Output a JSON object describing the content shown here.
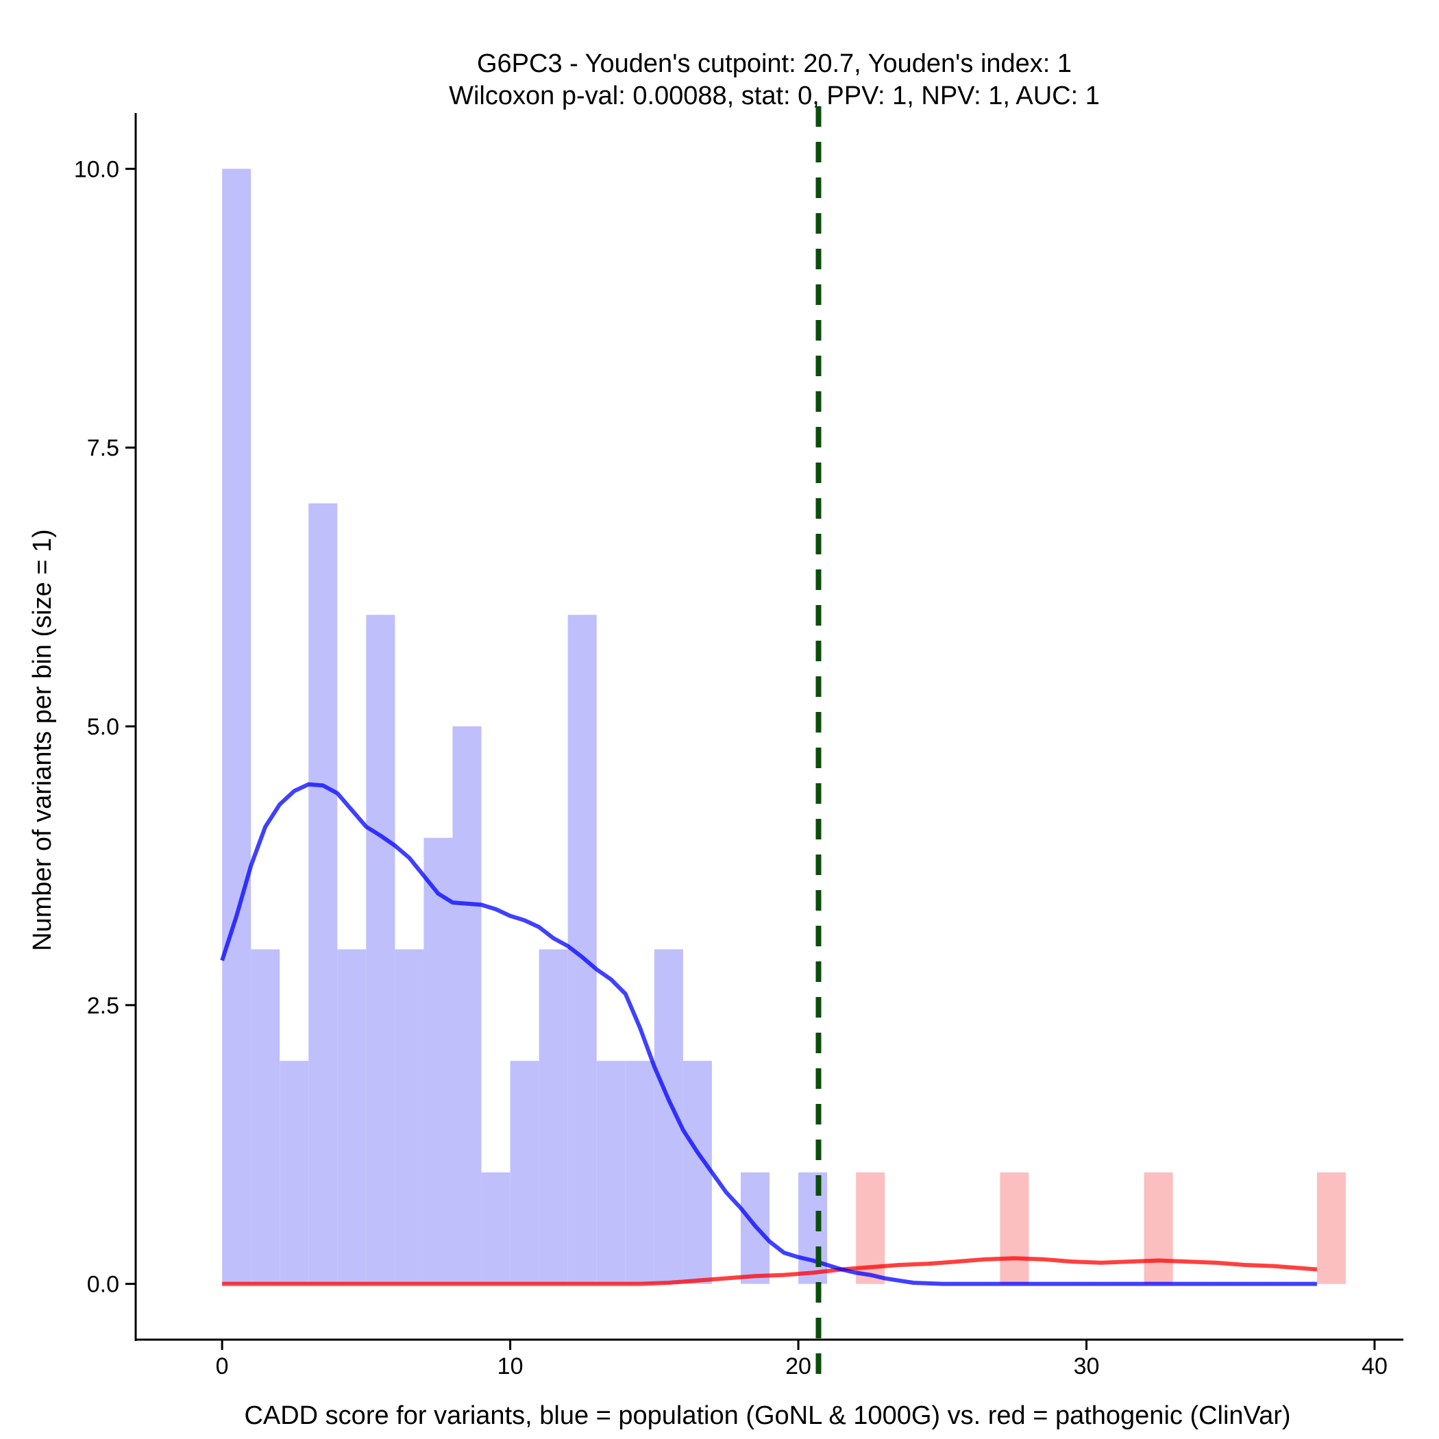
{
  "chart_data": {
    "type": "bar",
    "title_line1": "G6PC3 - Youden's cutpoint: 20.7, Youden's index: 1",
    "title_line2": "Wilcoxon p-val: 0.00088, stat: 0, PPV: 1, NPV: 1, AUC: 1",
    "xlabel": "CADD score for variants, blue = population (GoNL & 1000G) vs. red = pathogenic (ClinVar)",
    "ylabel": "Number of variants per bin (size = 1)",
    "xlim": [
      -3,
      41
    ],
    "ylim": [
      -0.5,
      10.5
    ],
    "x_ticks": [
      0,
      10,
      20,
      30,
      40
    ],
    "x_tick_labels": [
      "0",
      "10",
      "20",
      "30",
      "40"
    ],
    "y_ticks": [
      0,
      2.5,
      5,
      7.5,
      10
    ],
    "y_tick_labels": [
      "0.0",
      "2.5",
      "5.0",
      "7.5",
      "10.0"
    ],
    "bin_size": 1,
    "cutpoint": 20.7,
    "series": [
      {
        "name": "population (GoNL & 1000G)",
        "color": "#0000ff",
        "bar_color": "#bfbffc",
        "bins": [
          {
            "x0": 0,
            "value": 10
          },
          {
            "x0": 1,
            "value": 3
          },
          {
            "x0": 2,
            "value": 2
          },
          {
            "x0": 3,
            "value": 7
          },
          {
            "x0": 4,
            "value": 3
          },
          {
            "x0": 5,
            "value": 6
          },
          {
            "x0": 6,
            "value": 3
          },
          {
            "x0": 7,
            "value": 4
          },
          {
            "x0": 8,
            "value": 5
          },
          {
            "x0": 9,
            "value": 1
          },
          {
            "x0": 10,
            "value": 2
          },
          {
            "x0": 11,
            "value": 3
          },
          {
            "x0": 12,
            "value": 6
          },
          {
            "x0": 13,
            "value": 2
          },
          {
            "x0": 14,
            "value": 2
          },
          {
            "x0": 15,
            "value": 3
          },
          {
            "x0": 16,
            "value": 2
          },
          {
            "x0": 18,
            "value": 1
          },
          {
            "x0": 20,
            "value": 1
          }
        ],
        "density_curve": [
          [
            0,
            2.9
          ],
          [
            0.5,
            3.3
          ],
          [
            1,
            3.75
          ],
          [
            1.5,
            4.1
          ],
          [
            2,
            4.3
          ],
          [
            2.5,
            4.42
          ],
          [
            3,
            4.48
          ],
          [
            3.5,
            4.47
          ],
          [
            4,
            4.4
          ],
          [
            4.5,
            4.25
          ],
          [
            5,
            4.1
          ],
          [
            5.5,
            4.02
          ],
          [
            6,
            3.93
          ],
          [
            6.5,
            3.82
          ],
          [
            7,
            3.66
          ],
          [
            7.5,
            3.5
          ],
          [
            8,
            3.42
          ],
          [
            8.5,
            3.41
          ],
          [
            9,
            3.4
          ],
          [
            9.5,
            3.36
          ],
          [
            10,
            3.3
          ],
          [
            10.5,
            3.26
          ],
          [
            11,
            3.2
          ],
          [
            11.5,
            3.1
          ],
          [
            12,
            3.03
          ],
          [
            12.5,
            2.93
          ],
          [
            13,
            2.82
          ],
          [
            13.5,
            2.73
          ],
          [
            14,
            2.6
          ],
          [
            14.5,
            2.3
          ],
          [
            15,
            1.95
          ],
          [
            15.5,
            1.65
          ],
          [
            16,
            1.38
          ],
          [
            16.5,
            1.18
          ],
          [
            17,
            1.0
          ],
          [
            17.5,
            0.82
          ],
          [
            18,
            0.68
          ],
          [
            18.5,
            0.52
          ],
          [
            19,
            0.38
          ],
          [
            19.5,
            0.28
          ],
          [
            20,
            0.24
          ],
          [
            20.5,
            0.21
          ],
          [
            21,
            0.17
          ],
          [
            21.5,
            0.13
          ],
          [
            22,
            0.1
          ],
          [
            22.5,
            0.08
          ],
          [
            23,
            0.05
          ],
          [
            23.5,
            0.03
          ],
          [
            24,
            0.01
          ],
          [
            25,
            0
          ],
          [
            30,
            0
          ],
          [
            38,
            0
          ]
        ]
      },
      {
        "name": "pathogenic (ClinVar)",
        "color": "#ff0000",
        "bar_color": "#fbbfbf",
        "bins": [
          {
            "x0": 22,
            "value": 1
          },
          {
            "x0": 27,
            "value": 1
          },
          {
            "x0": 32,
            "value": 1
          },
          {
            "x0": 38,
            "value": 1
          }
        ],
        "density_curve": [
          [
            0,
            0
          ],
          [
            10,
            0
          ],
          [
            14.5,
            0
          ],
          [
            15.5,
            0.01
          ],
          [
            16.5,
            0.03
          ],
          [
            17.5,
            0.05
          ],
          [
            18.5,
            0.07
          ],
          [
            19.5,
            0.08
          ],
          [
            20.5,
            0.1
          ],
          [
            21.5,
            0.13
          ],
          [
            22.5,
            0.15
          ],
          [
            23.5,
            0.17
          ],
          [
            24.5,
            0.18
          ],
          [
            25.5,
            0.2
          ],
          [
            26.5,
            0.22
          ],
          [
            27.5,
            0.23
          ],
          [
            28.5,
            0.22
          ],
          [
            29.5,
            0.2
          ],
          [
            30.5,
            0.19
          ],
          [
            31.5,
            0.2
          ],
          [
            32.5,
            0.21
          ],
          [
            33.5,
            0.2
          ],
          [
            34.5,
            0.19
          ],
          [
            35.5,
            0.17
          ],
          [
            36.5,
            0.16
          ],
          [
            37.5,
            0.14
          ],
          [
            38,
            0.13
          ]
        ]
      }
    ],
    "cutpoint_color": "#0b4d0b"
  }
}
